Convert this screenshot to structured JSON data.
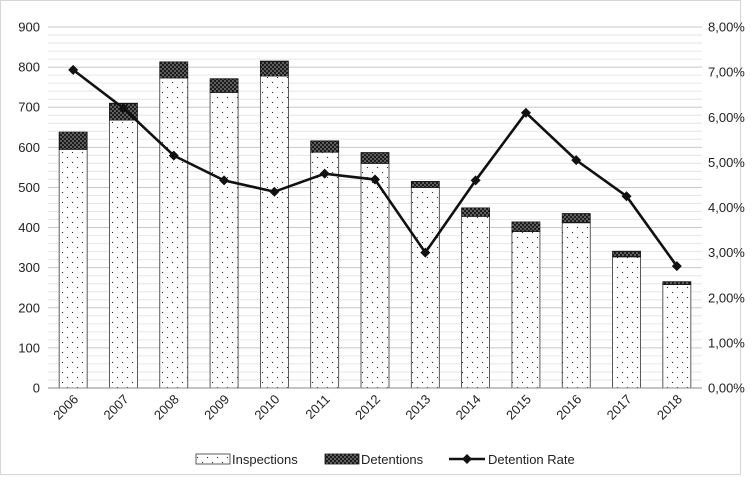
{
  "chart_data": {
    "type": "bar",
    "categories": [
      "2006",
      "2007",
      "2008",
      "2009",
      "2010",
      "2011",
      "2012",
      "2013",
      "2014",
      "2015",
      "2016",
      "2017",
      "2018"
    ],
    "series": [
      {
        "name": "Inspections",
        "kind": "stacked-bar",
        "axis": "left",
        "values": [
          595,
          668,
          773,
          737,
          778,
          588,
          560,
          500,
          428,
          390,
          412,
          327,
          258
        ]
      },
      {
        "name": "Detentions",
        "kind": "stacked-bar",
        "axis": "left",
        "values": [
          43,
          42,
          40,
          34,
          37,
          28,
          27,
          15,
          21,
          24,
          23,
          14,
          7
        ]
      },
      {
        "name": "Detention Rate",
        "kind": "line",
        "axis": "right",
        "values": [
          0.0705,
          0.062,
          0.0515,
          0.046,
          0.0435,
          0.0475,
          0.0462,
          0.03,
          0.046,
          0.061,
          0.0505,
          0.0425,
          0.027
        ]
      }
    ],
    "y_left": {
      "min": 0,
      "max": 900,
      "ticks": [
        "0",
        "100",
        "200",
        "300",
        "400",
        "500",
        "600",
        "700",
        "800",
        "900"
      ]
    },
    "y_right": {
      "min": 0,
      "max": 0.08,
      "ticks": [
        "0,00%",
        "1,00%",
        "2,00%",
        "3,00%",
        "4,00%",
        "5,00%",
        "6,00%",
        "7,00%",
        "8,00%"
      ]
    },
    "grid": true,
    "legend_position": "bottom",
    "colors": {
      "line": "#111111",
      "bar_dark": "#222222",
      "grid": "#d0d0d0"
    }
  }
}
